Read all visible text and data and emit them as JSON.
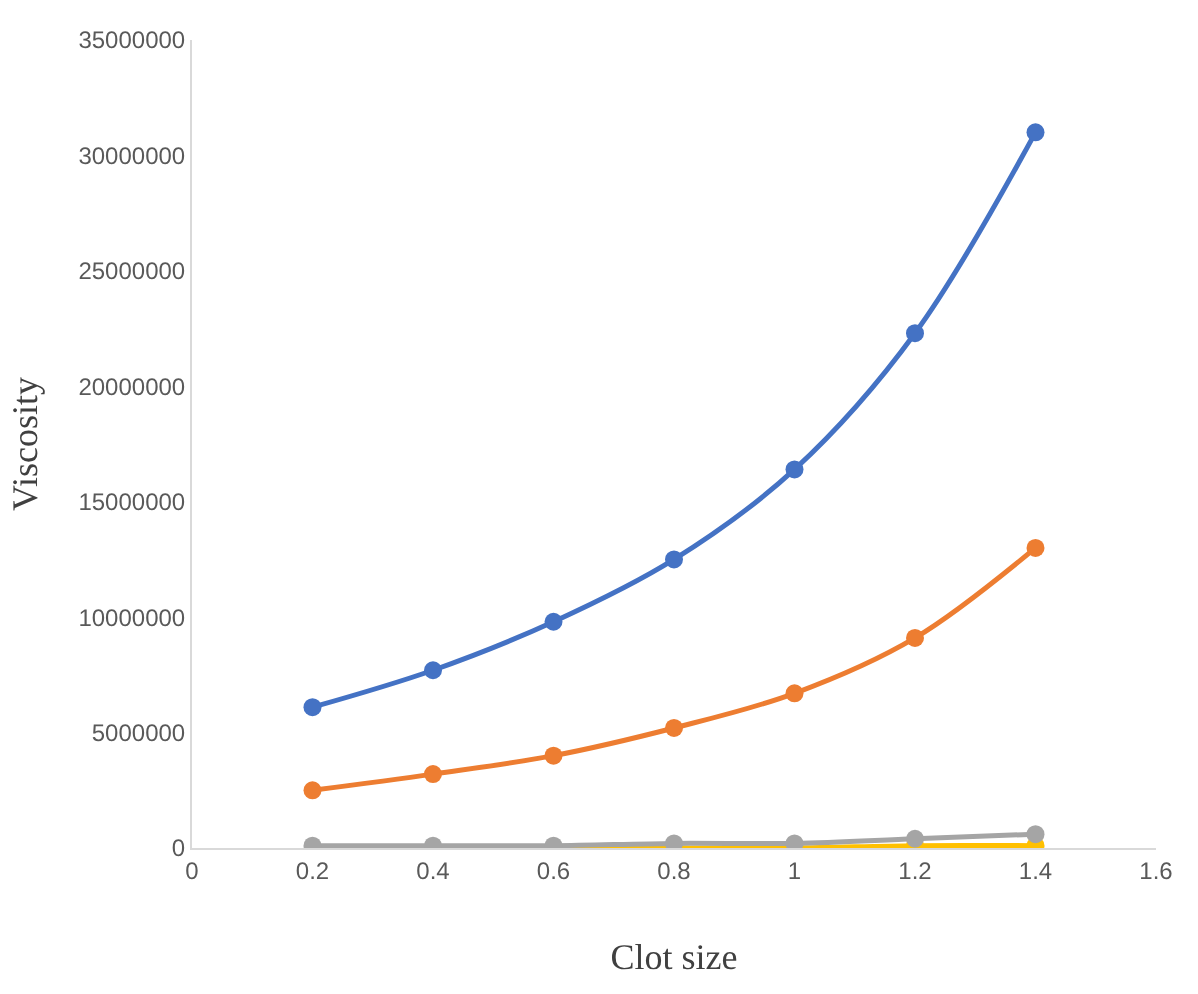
{
  "chart_data": {
    "type": "line",
    "xlabel": "Clot size",
    "ylabel": "Viscosity",
    "xlim": [
      0,
      1.6
    ],
    "xticks": [
      0,
      0.2,
      0.4,
      0.6,
      0.8,
      1,
      1.2,
      1.4,
      1.6
    ],
    "ylim": [
      0,
      35000000
    ],
    "yticks": [
      0,
      5000000,
      10000000,
      15000000,
      20000000,
      25000000,
      30000000,
      35000000
    ],
    "x": [
      0.2,
      0.4,
      0.6,
      0.8,
      1,
      1.2,
      1.4
    ],
    "series": [
      {
        "color": "#4472c4",
        "values": [
          6100000,
          7700000,
          9800000,
          12500000,
          16400000,
          22300000,
          31000000
        ]
      },
      {
        "color": "#ed7d31",
        "values": [
          2500000,
          3200000,
          4000000,
          5200000,
          6700000,
          9100000,
          13000000
        ]
      },
      {
        "color": "#ffc000",
        "values": [
          null,
          null,
          0,
          0,
          0,
          100000,
          100000
        ]
      },
      {
        "color": "#a5a5a5",
        "values": [
          100000,
          100000,
          100000,
          200000,
          200000,
          400000,
          600000
        ]
      }
    ],
    "marker": "circle",
    "legend": false
  }
}
